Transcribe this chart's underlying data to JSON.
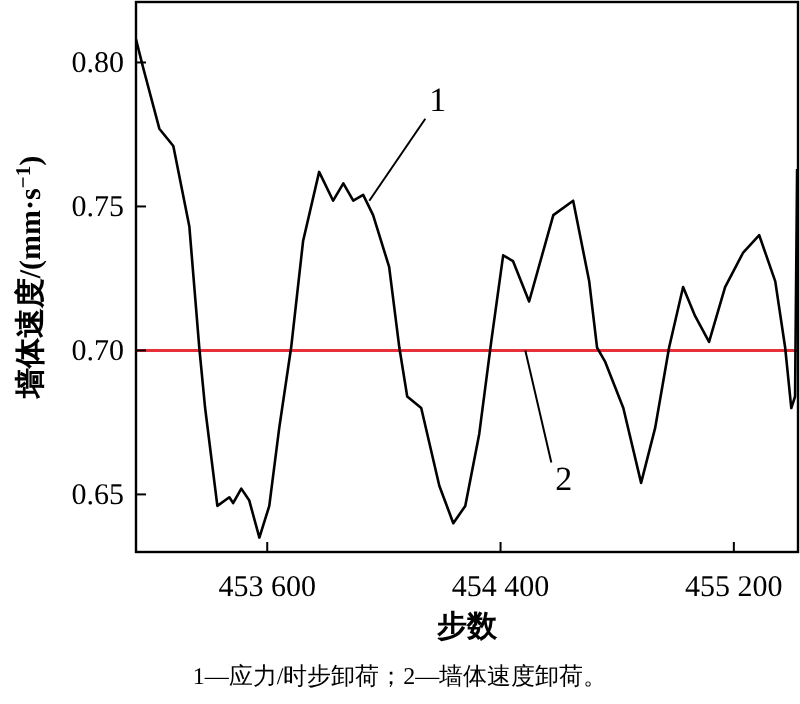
{
  "chart_data": {
    "type": "line",
    "xlabel": "步数",
    "ylabel": "墙体速度/(mm·s$^{−1}$)",
    "xlim": [
      453150,
      455420
    ],
    "ylim": [
      0.63,
      0.821
    ],
    "xticks": [
      {
        "value": 453600,
        "label": "453 600"
      },
      {
        "value": 454400,
        "label": "454 400"
      },
      {
        "value": 455200,
        "label": "455 200"
      }
    ],
    "yticks": [
      {
        "value": 0.65,
        "label": "0.65"
      },
      {
        "value": 0.7,
        "label": "0.70"
      },
      {
        "value": 0.75,
        "label": "0.75"
      },
      {
        "value": 0.8,
        "label": "0.80"
      }
    ],
    "grid": false,
    "marker": "none",
    "line_style": "solid",
    "ref_lines": [
      {
        "axis": "y",
        "value": 0.7,
        "color": "#e8303a"
      }
    ],
    "series": [
      {
        "color": "#000000",
        "x": [
          453150,
          453175,
          453230,
          453278,
          453333,
          453367,
          453387,
          453429,
          453470,
          453483,
          453511,
          453538,
          453573,
          453607,
          453641,
          453682,
          453723,
          453778,
          453826,
          453861,
          453895,
          453929,
          453963,
          454018,
          454053,
          454080,
          454128,
          454190,
          454238,
          454279,
          454327,
          454368,
          454409,
          454443,
          454498,
          454581,
          454649,
          454704,
          454731,
          454759,
          454821,
          454882,
          454930,
          454978,
          455026,
          455067,
          455115,
          455170,
          455232,
          455287,
          455342,
          455376,
          455397,
          455410,
          455417
        ],
        "values": [
          0.808,
          0.798,
          0.777,
          0.771,
          0.743,
          0.701,
          0.68,
          0.646,
          0.649,
          0.647,
          0.652,
          0.648,
          0.635,
          0.646,
          0.673,
          0.701,
          0.738,
          0.762,
          0.752,
          0.758,
          0.752,
          0.754,
          0.747,
          0.729,
          0.701,
          0.684,
          0.68,
          0.653,
          0.64,
          0.646,
          0.671,
          0.703,
          0.733,
          0.731,
          0.717,
          0.747,
          0.752,
          0.724,
          0.701,
          0.696,
          0.68,
          0.654,
          0.673,
          0.701,
          0.722,
          0.712,
          0.703,
          0.722,
          0.734,
          0.74,
          0.724,
          0.701,
          0.68,
          0.684,
          0.763
        ]
      }
    ],
    "annotations": [
      {
        "text": "1",
        "x": 453950,
        "y": 0.752
      },
      {
        "text": "2",
        "x": 454485,
        "y": 0.7
      },
      "1—应力/时步卸荷；2—墙体速度卸荷。"
    ]
  }
}
